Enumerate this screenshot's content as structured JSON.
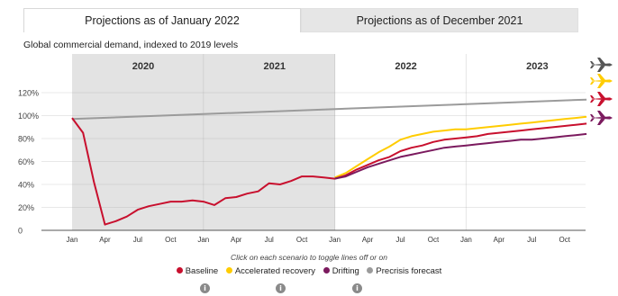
{
  "tabs": [
    {
      "label": "Projections as of January 2022",
      "active": true
    },
    {
      "label": "Projections as of December 2021",
      "active": false
    }
  ],
  "subtitle": "Global commercial demand, indexed to 2019 levels",
  "hint": "Click on each scenario to toggle lines off or on",
  "legend": [
    {
      "label": "Baseline",
      "color": "#c8102e"
    },
    {
      "label": "Accelerated recovery",
      "color": "#ffcc00"
    },
    {
      "label": "Drifting",
      "color": "#7b1a5e"
    },
    {
      "label": "Precrisis forecast",
      "color": "#9b9b9b"
    }
  ],
  "info_icon_glyph": "i",
  "chart_data": {
    "type": "line",
    "ylim": [
      0,
      120
    ],
    "ytick_labels": [
      "0",
      "20%",
      "40%",
      "60%",
      "80%",
      "100%",
      "120%"
    ],
    "ytick_values": [
      0,
      20,
      40,
      60,
      80,
      100,
      120
    ],
    "xtick_labels": [
      "Jan",
      "Apr",
      "Jul",
      "Oct",
      "Jan",
      "Apr",
      "Jul",
      "Oct",
      "Jan",
      "Apr",
      "Jul",
      "Oct",
      "Jan",
      "Apr",
      "Jul",
      "Oct"
    ],
    "year_labels": [
      "2020",
      "2021",
      "2022",
      "2023"
    ],
    "shaded_years": [
      "2020",
      "2021"
    ],
    "grid": true,
    "series": [
      {
        "name": "Precrisis forecast",
        "color": "#9b9b9b",
        "x": [
          0,
          47
        ],
        "values": [
          97,
          114
        ]
      },
      {
        "name": "Accelerated recovery",
        "color": "#ffcc00",
        "x": [
          24,
          25,
          26,
          27,
          28,
          29,
          30,
          31,
          32,
          33,
          34,
          35,
          36,
          37,
          38,
          39,
          40,
          41,
          42,
          43,
          44,
          45,
          46,
          47
        ],
        "values": [
          46,
          50,
          56,
          62,
          68,
          73,
          79,
          82,
          84,
          86,
          87,
          88,
          88,
          89,
          90,
          91,
          92,
          93,
          94,
          95,
          96,
          97,
          98,
          99
        ]
      },
      {
        "name": "Baseline",
        "color": "#c8102e",
        "x": [
          0,
          1,
          2,
          3,
          4,
          5,
          6,
          7,
          8,
          9,
          10,
          11,
          12,
          13,
          14,
          15,
          16,
          17,
          18,
          19,
          20,
          21,
          22,
          23,
          24,
          25,
          26,
          27,
          28,
          29,
          30,
          31,
          32,
          33,
          34,
          35,
          36,
          37,
          38,
          39,
          40,
          41,
          42,
          43,
          44,
          45,
          46,
          47
        ],
        "values": [
          98,
          85,
          42,
          5,
          8,
          12,
          18,
          21,
          23,
          25,
          25,
          26,
          25,
          22,
          28,
          29,
          32,
          34,
          41,
          40,
          43,
          47,
          47,
          46,
          45,
          48,
          53,
          57,
          61,
          64,
          69,
          72,
          74,
          77,
          79,
          80,
          81,
          82,
          84,
          85,
          86,
          87,
          88,
          89,
          90,
          91,
          92,
          93
        ]
      },
      {
        "name": "Drifting",
        "color": "#7b1a5e",
        "x": [
          24,
          25,
          26,
          27,
          28,
          29,
          30,
          31,
          32,
          33,
          34,
          35,
          36,
          37,
          38,
          39,
          40,
          41,
          42,
          43,
          44,
          45,
          46,
          47
        ],
        "values": [
          45,
          47,
          51,
          55,
          58,
          61,
          64,
          66,
          68,
          70,
          72,
          73,
          74,
          75,
          76,
          77,
          78,
          79,
          79,
          80,
          81,
          82,
          83,
          84
        ]
      }
    ]
  }
}
